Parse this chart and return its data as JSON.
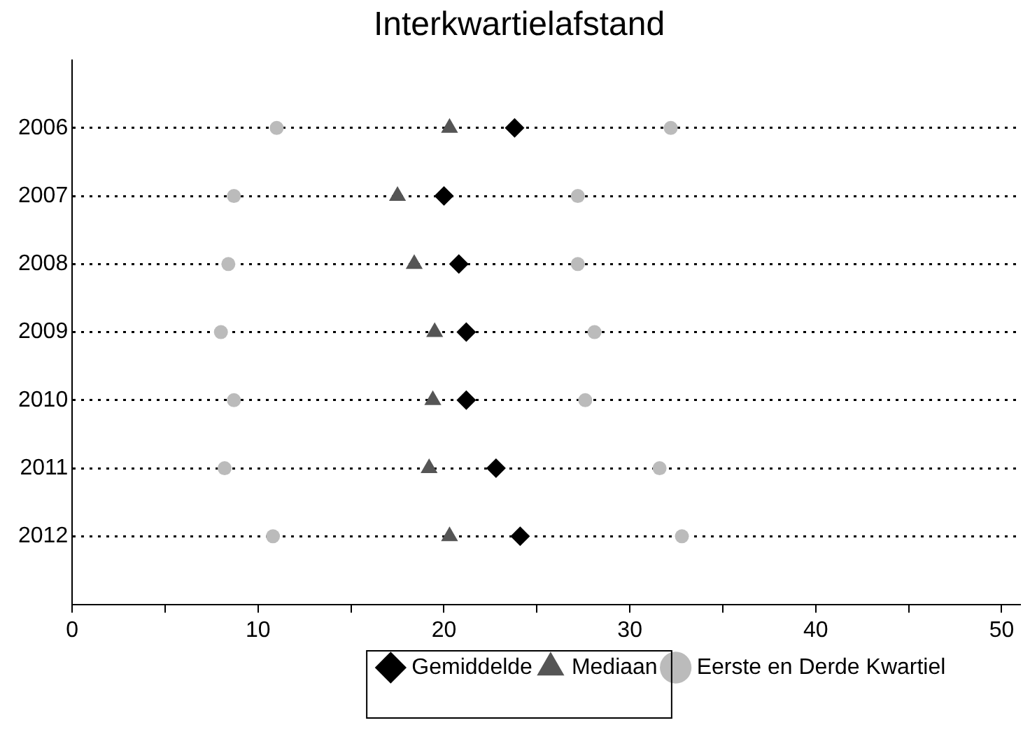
{
  "chart_data": {
    "type": "scatter",
    "title": "Interkwartielafstand",
    "orientation": "horizontal",
    "categories": [
      "2006",
      "2007",
      "2008",
      "2009",
      "2010",
      "2011",
      "2012"
    ],
    "xlim": [
      0,
      51
    ],
    "xticks": [
      0,
      {
        "value": 5,
        "label": null
      },
      10,
      {
        "value": 15,
        "label": null
      },
      20,
      {
        "value": 25,
        "label": null
      },
      30,
      {
        "value": 35,
        "label": null
      },
      40,
      {
        "value": 45,
        "label": null
      },
      50
    ],
    "grid": "y",
    "legend": "bottom",
    "series": [
      {
        "name": "Gemiddelde",
        "color": "#000000",
        "marker": "diamond",
        "values": [
          23.8,
          20.0,
          20.8,
          21.2,
          21.2,
          22.8,
          24.1
        ]
      },
      {
        "name": "Mediaan",
        "color": "#555555",
        "marker": "triangle",
        "values": [
          20.3,
          17.5,
          18.4,
          19.5,
          19.4,
          19.2,
          20.3
        ]
      },
      {
        "name": "Eerste en Derde Kwartiel",
        "color": "#bbbbbb",
        "marker": "circle",
        "values": [
          11.0,
          8.7,
          8.4,
          8.0,
          8.7,
          8.2,
          10.8
        ]
      },
      {
        "color": "#bbbbbb",
        "marker": "circle",
        "values": [
          32.2,
          27.2,
          27.2,
          28.1,
          27.6,
          31.6,
          32.8
        ]
      }
    ]
  }
}
